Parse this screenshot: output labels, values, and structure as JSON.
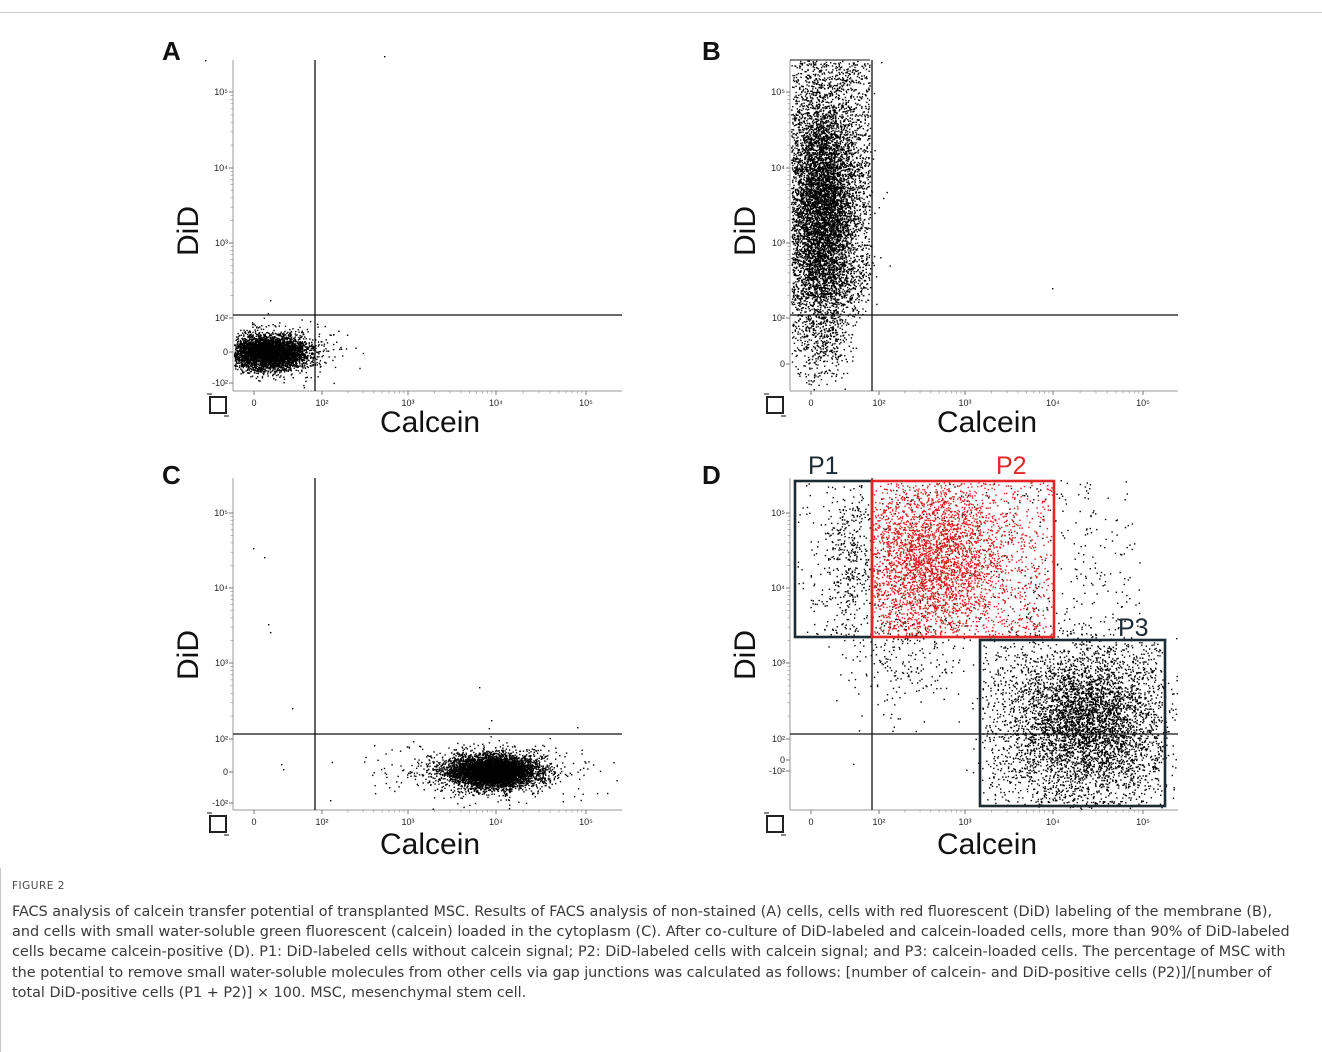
{
  "panels": [
    {
      "letter": "A",
      "ylabel": "DiD",
      "xlabel": "Calcein",
      "xticks": [
        "0",
        "10²",
        "10³",
        "10⁴",
        "10⁵"
      ],
      "yticks": [
        "10⁵",
        "10⁴",
        "10³",
        "10²",
        "0",
        "-10²"
      ],
      "gates": []
    },
    {
      "letter": "B",
      "ylabel": "DiD",
      "xlabel": "Calcein",
      "xticks": [
        "0",
        "10²",
        "10³",
        "10⁴",
        "10⁵"
      ],
      "yticks": [
        "10⁵",
        "10⁴",
        "10³",
        "10²",
        "0"
      ],
      "gates": []
    },
    {
      "letter": "C",
      "ylabel": "DiD",
      "xlabel": "Calcein",
      "xticks": [
        "0",
        "10²",
        "10³",
        "10⁴",
        "10⁵"
      ],
      "yticks": [
        "10⁵",
        "10⁴",
        "10³",
        "10²",
        "0",
        "-10²"
      ],
      "gates": []
    },
    {
      "letter": "D",
      "ylabel": "DiD",
      "xlabel": "Calcein",
      "xticks": [
        "0",
        "10²",
        "10³",
        "10⁴",
        "10⁵"
      ],
      "yticks": [
        "10⁵",
        "10⁴",
        "10³",
        "10²",
        "0",
        "-10²"
      ],
      "gates": [
        {
          "name": "P1",
          "color": "#1c2a33"
        },
        {
          "name": "P2",
          "color": "#e32626"
        },
        {
          "name": "P3",
          "color": "#1c2a33"
        }
      ]
    }
  ],
  "colors": {
    "dots": "#000000",
    "p2_dots": "#d81c1c",
    "gate_dark": "#1c2a33",
    "gate_red": "#e32626"
  },
  "caption": {
    "label": "FIGURE 2",
    "text": "FACS analysis of calcein transfer potential of transplanted MSC. Results of FACS analysis of non-stained (A) cells, cells with red fluorescent (DiD) labeling of the membrane (B), and cells with small water-soluble green fluorescent (calcein) loaded in the cytoplasm (C). After co-culture of DiD-labeled and calcein-loaded cells, more than 90% of DiD-labeled cells became calcein-positive (D). P1: DiD-labeled cells without calcein signal; P2: DiD-labeled cells with calcein signal; and P3: calcein-loaded cells. The percentage of MSC with the potential to remove small water-soluble molecules from other cells via gap junctions was calculated as follows: [number of calcein- and DiD-positive cells (P2)]/[number of total DiD-positive cells (P1 + P2)] × 100. MSC, mesenchymal stem cell."
  }
}
